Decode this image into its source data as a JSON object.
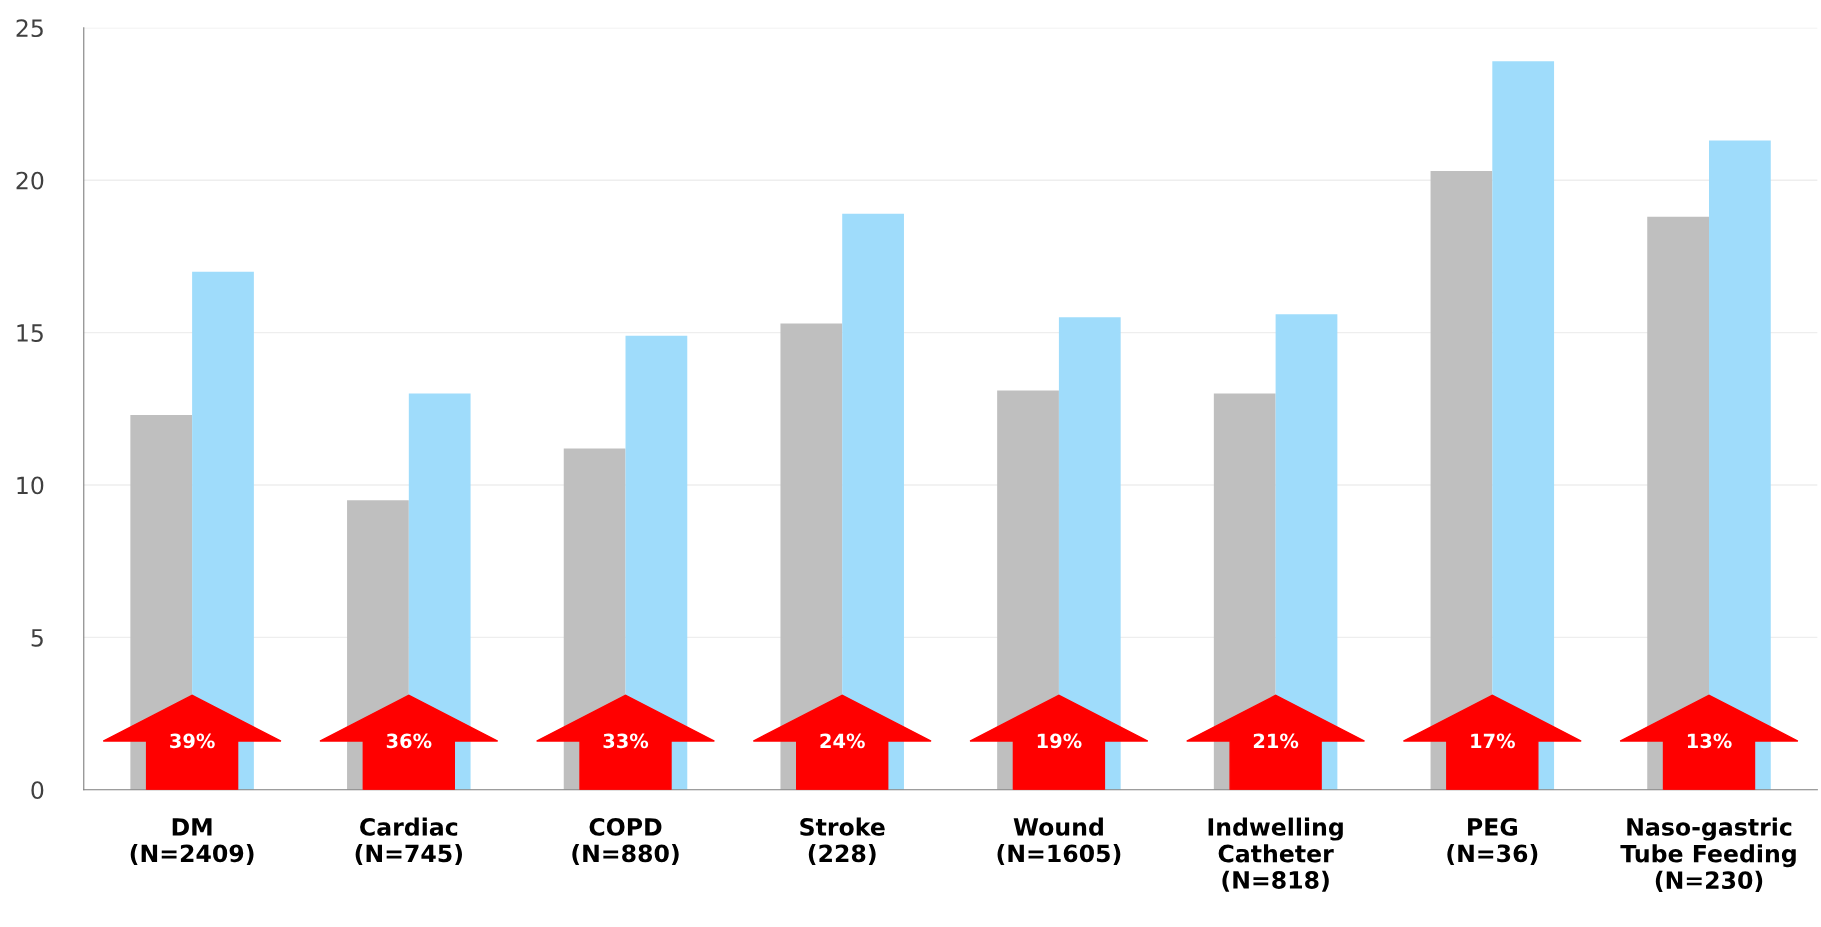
{
  "chart_data": {
    "type": "bar",
    "categories": [
      "DM\n(N=2409)",
      "Cardiac\n(N=745)",
      "COPD\n(N=880)",
      "Stroke\n(228)",
      "Wound\n(N=1605)",
      "Indwelling\nCatheter\n(N=818)",
      "PEG\n(N=36)",
      "Naso-gastric\nTube Feeding\n(N=230)"
    ],
    "series": [
      {
        "color": "#bfbfbf",
        "values": [
          12.3,
          9.5,
          11.2,
          15.3,
          13.1,
          13.0,
          20.3,
          18.8
        ]
      },
      {
        "color": "#9fdcfb",
        "values": [
          17.0,
          13.0,
          14.9,
          18.9,
          15.5,
          15.6,
          23.9,
          21.3
        ]
      }
    ],
    "ylim": [
      0,
      25
    ],
    "yticks": [
      0,
      5,
      10,
      15,
      20,
      25
    ],
    "grid": "y",
    "annotations": [
      "39%",
      "36%",
      "33%",
      "24%",
      "19%",
      "21%",
      "17%",
      "13%"
    ]
  }
}
